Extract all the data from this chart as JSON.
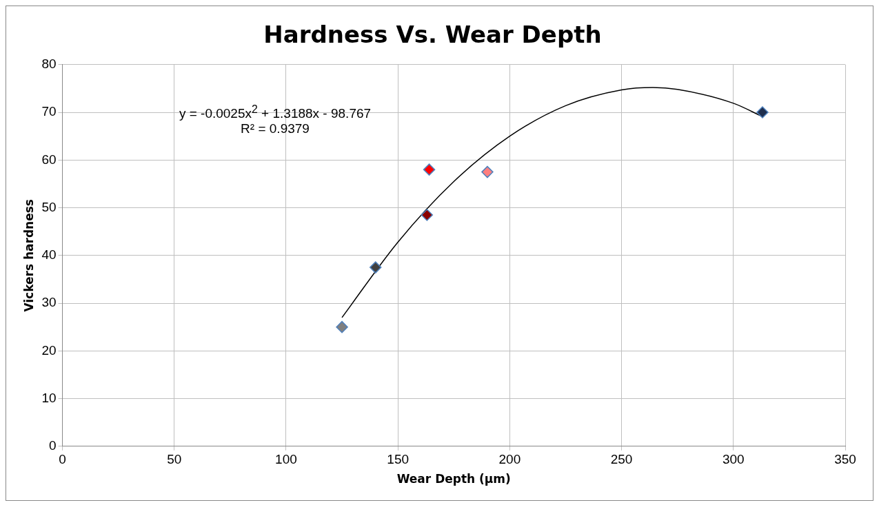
{
  "chart_data": {
    "type": "scatter",
    "title": "Hardness Vs. Wear Depth",
    "xlabel": "Wear Depth (µm)",
    "ylabel": "Vickers hardness",
    "xlim": [
      0,
      350
    ],
    "xticks": [
      0,
      50,
      100,
      150,
      200,
      250,
      300,
      350
    ],
    "ylim": [
      0,
      80
    ],
    "yticks": [
      0,
      10,
      20,
      30,
      40,
      50,
      60,
      70,
      80
    ],
    "grid": true,
    "legend": false,
    "marker": "diamond",
    "annotations": [
      "y = -0.0025x$^{2}$ + 1.3188x - 98.767",
      "R² = 0.9379"
    ],
    "series": [
      {
        "x": [
          125,
          140,
          163,
          164,
          190,
          313
        ],
        "values": [
          25,
          37.5,
          48.5,
          58,
          57.5,
          70
        ],
        "colors": [
          "#7f7f7f",
          "#404040",
          "#8b0000",
          "#ff0000",
          "#ff7f7f",
          "#1f2f4f"
        ]
      },
      {
        "type": "line",
        "color": "#000000",
        "marker": "none",
        "x": [
          125,
          150,
          175,
          200,
          225,
          250,
          264,
          275,
          300,
          313
        ],
        "values": [
          27.0,
          42.8,
          55.5,
          65.0,
          71.4,
          74.7,
          75.2,
          74.8,
          71.9,
          69.1
        ]
      }
    ]
  }
}
